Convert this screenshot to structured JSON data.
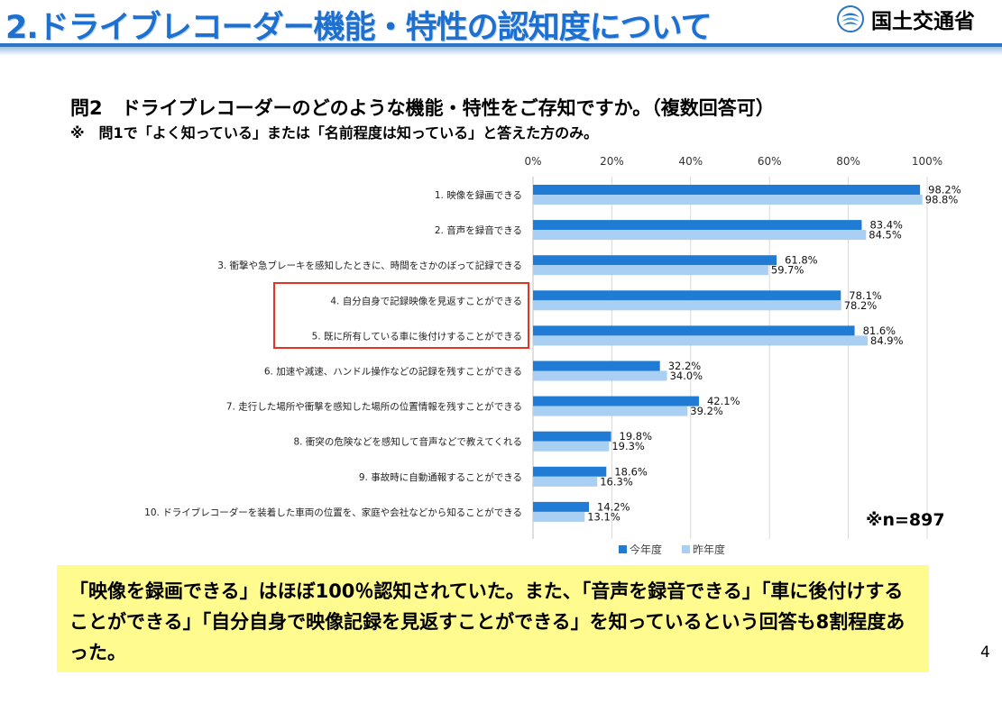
{
  "header": {
    "title": "2.ドライブレコーダー機能・特性の認知度について",
    "logo_text": "国土交通省"
  },
  "question": "問2　ドライブレコーダーのどのような機能・特性をご存知ですか。（複数回答可）",
  "note": "※　問1で「よく知っている」または「名前程度は知っている」と答えた方のみ。",
  "chart_data": {
    "type": "bar",
    "orientation": "horizontal",
    "categories": [
      "1. 映像を録画できる",
      "2. 音声を録音できる",
      "3. 衝撃や急ブレーキを感知したときに、時間をさかのぼって記録できる",
      "4. 自分自身で記録映像を見返すことができる",
      "5. 既に所有している車に後付けすることができる",
      "6. 加速や減速、ハンドル操作などの記録を残すことができる",
      "7. 走行した場所や衝撃を感知した場所の位置情報を残すことができる",
      "8. 衝突の危険などを感知して音声などで教えてくれる",
      "9. 事故時に自動通報することができる",
      "10. ドライブレコーダーを装着した車両の位置を、家庭や会社などから知ることができる"
    ],
    "series": [
      {
        "name": "今年度",
        "color": "#1f7bd4",
        "values": [
          98.2,
          83.4,
          61.8,
          78.1,
          81.6,
          32.2,
          42.1,
          19.8,
          18.6,
          14.2
        ]
      },
      {
        "name": "昨年度",
        "color": "#a9cff2",
        "values": [
          98.8,
          84.5,
          59.7,
          78.2,
          84.9,
          34.0,
          39.2,
          19.3,
          16.3,
          13.1
        ]
      }
    ],
    "value_labels": {
      "今年度": [
        "98.2%",
        "83.4%",
        "61.8%",
        "78.1%",
        "81.6%",
        "32.2%",
        "42.1%",
        "19.8%",
        "18.6%",
        "14.2%"
      ],
      "昨年度": [
        "98.8%",
        "84.5%",
        "59.7%",
        "78.2%",
        "84.9%",
        "34.0%",
        "39.2%",
        "19.3%",
        "16.3%",
        "13.1%"
      ]
    },
    "xlim": [
      0,
      100
    ],
    "xticks": [
      "0%",
      "20%",
      "40%",
      "60%",
      "80%",
      "100%"
    ],
    "grid": true,
    "legend_placement": "bottom",
    "highlighted_categories": [
      3,
      4
    ]
  },
  "sample_size": "※n=897",
  "summary": "「映像を録画できる」はほぼ100％認知されていた。また、「音声を録音できる」「車に後付けすることができる」「自分自身で映像記録を見返すことができる」を知っているという回答も8割程度あった。",
  "page_number": "4"
}
